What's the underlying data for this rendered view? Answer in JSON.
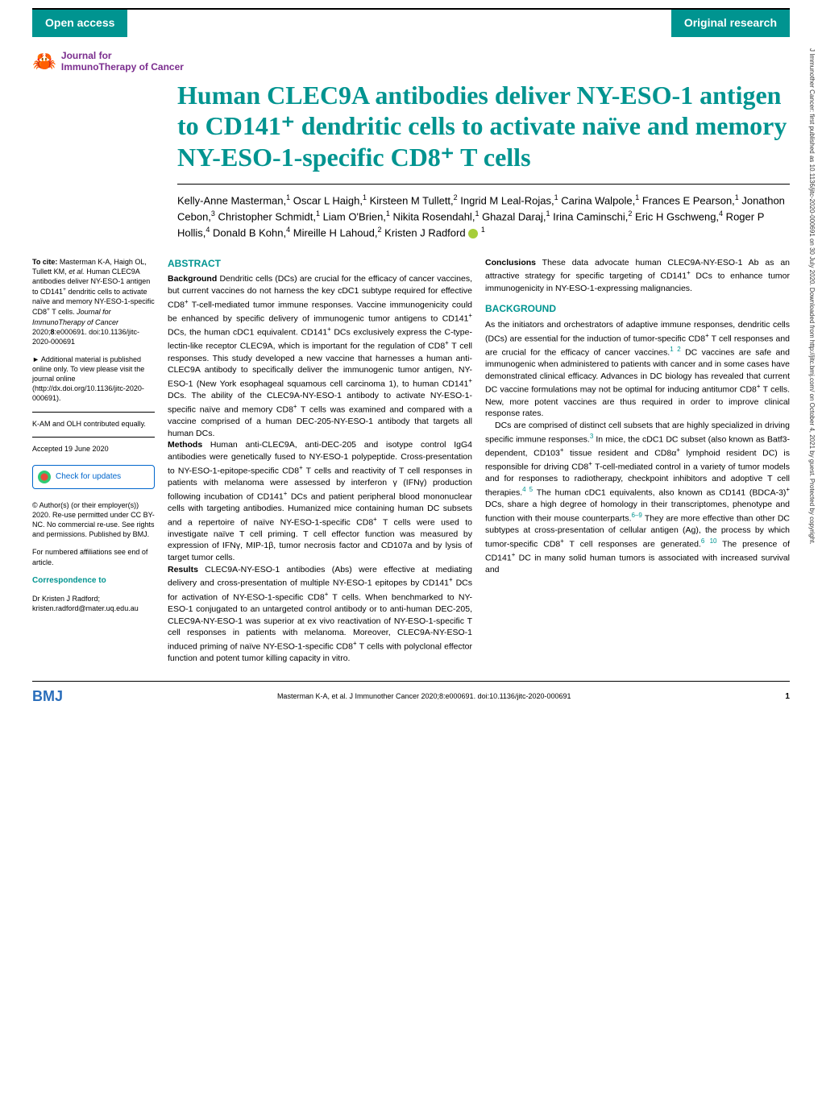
{
  "header": {
    "left": "Open access",
    "right": "Original research"
  },
  "journal": {
    "name_line1": "Journal for",
    "name_line2": "ImmunoTherapy of Cancer"
  },
  "title": "Human CLEC9A antibodies deliver NY-ESO-1 antigen to CD141⁺ dendritic cells to activate naïve and memory NY-ESO-1-specific CD8⁺ T cells",
  "authors_html": "Kelly-Anne Masterman,<sup>1</sup> Oscar L Haigh,<sup>1</sup> Kirsteen M Tullett,<sup>2</sup> Ingrid M Leal-Rojas,<sup>1</sup> Carina Walpole,<sup>1</sup> Frances E Pearson,<sup>1</sup> Jonathon Cebon,<sup>3</sup> Christopher Schmidt,<sup>1</sup> Liam O'Brien,<sup>1</sup> Nikita Rosendahl,<sup>1</sup> Ghazal Daraj,<sup>1</sup> Irina Caminschi,<sup>2</sup> Eric H Gschweng,<sup>4</sup> Roger P Hollis,<sup>4</sup> Donald B Kohn,<sup>4</sup> Mireille H Lahoud,<sup>2</sup> Kristen J Radford <span class=\"orcid-icon\"></span> <sup>1</sup>",
  "sidebar": {
    "cite": "<span class=\"bold\">To cite:</span> Masterman K-A, Haigh OL, Tullett KM, <span class=\"italic\">et al.</span> Human CLEC9A antibodies deliver NY-ESO-1 antigen to CD141<sup>+</sup> dendritic cells to activate naïve and memory NY-ESO-1-specific CD8<sup>+</sup> T cells. <span class=\"italic\">Journal for ImmunoTherapy of Cancer</span> 2020;<span class=\"bold\">8</span>:e000691. doi:10.1136/jitc-2020-000691",
    "additional": "► Additional material is published online only. To view please visit the journal online (http://dx.doi.org/10.1136/jitc-2020-000691).",
    "contrib": "K-AM and OLH contributed equally.",
    "accepted": "Accepted 19 June 2020",
    "check": "Check for updates",
    "license": "© Author(s) (or their employer(s)) 2020. Re-use permitted under CC BY-NC. No commercial re-use. See rights and permissions. Published by BMJ.",
    "affil": "For numbered affiliations see end of article.",
    "corr_h": "Correspondence to",
    "corr": "Dr Kristen J Radford; kristen.radford@mater.uq.edu.au"
  },
  "abstract": {
    "heading": "ABSTRACT",
    "background": "<span class=\"bg-label\">Background</span> Dendritic cells (DCs) are crucial for the efficacy of cancer vaccines, but current vaccines do not harness the key cDC1 subtype required for effective CD8<sup>+</sup> T-cell-mediated tumor immune responses. Vaccine immunogenicity could be enhanced by specific delivery of immunogenic tumor antigens to CD141<sup>+</sup> DCs, the human cDC1 equivalent. CD141<sup>+</sup> DCs exclusively express the C-type-lectin-like receptor CLEC9A, which is important for the regulation of CD8<sup>+</sup> T cell responses. This study developed a new vaccine that harnesses a human anti-CLEC9A antibody to specifically deliver the immunogenic tumor antigen, NY-ESO-1 (New York esophageal squamous cell carcinoma 1), to human CD141<sup>+</sup> DCs. The ability of the CLEC9A-NY-ESO-1 antibody to activate NY-ESO-1-specific naïve and memory CD8<sup>+</sup> T cells was examined and compared with a vaccine comprised of a human DEC-205-NY-ESO-1 antibody that targets all human DCs.",
    "methods": "<span class=\"bg-label\">Methods</span> Human anti-CLEC9A, anti-DEC-205 and isotype control IgG4 antibodies were genetically fused to NY-ESO-1 polypeptide. Cross-presentation to NY-ESO-1-epitope-specific CD8<sup>+</sup> T cells and reactivity of T cell responses in patients with melanoma were assessed by interferon γ (IFNγ) production following incubation of CD141<sup>+</sup> DCs and patient peripheral blood mononuclear cells with targeting antibodies. Humanized mice containing human DC subsets and a repertoire of naïve NY-ESO-1-specific CD8<sup>+</sup> T cells were used to investigate naïve T cell priming. T cell effector function was measured by expression of IFNγ, MIP-1β, tumor necrosis factor and CD107a and by lysis of target tumor cells.",
    "results": "<span class=\"bg-label\">Results</span> CLEC9A-NY-ESO-1 antibodies (Abs) were effective at mediating delivery and cross-presentation of multiple NY-ESO-1 epitopes by CD141<sup>+</sup> DCs for activation of NY-ESO-1-specific CD8<sup>+</sup> T cells. When benchmarked to NY-ESO-1 conjugated to an untargeted control antibody or to anti-human DEC-205, CLEC9A-NY-ESO-1 was superior at ex vivo reactivation of NY-ESO-1-specific T cell responses in patients with melanoma. Moreover, CLEC9A-NY-ESO-1 induced priming of naïve NY-ESO-1-specific CD8<sup>+</sup> T cells with polyclonal effector function and potent tumor killing capacity in vitro.",
    "conclusions": "<span class=\"bg-label\">Conclusions</span> These data advocate human CLEC9A-NY-ESO-1 Ab as an attractive strategy for specific targeting of CD141<sup>+</sup> DCs to enhance tumor immunogenicity in NY-ESO-1-expressing malignancies."
  },
  "background": {
    "heading": "BACKGROUND",
    "p1": "As the initiators and orchestrators of adaptive immune responses, dendritic cells (DCs) are essential for the induction of tumor-specific CD8<sup>+</sup> T cell responses and are crucial for the efficacy of cancer vaccines.<span class=\"ref\">1 2</span> DC vaccines are safe and immunogenic when administered to patients with cancer and in some cases have demonstrated clinical efficacy. Advances in DC biology has revealed that current DC vaccine formulations may not be optimal for inducing antitumor CD8<sup>+</sup> T cells. New, more potent vaccines are thus required in order to improve clinical response rates.",
    "p2": "DCs are comprised of distinct cell subsets that are highly specialized in driving specific immune responses.<span class=\"ref\">3</span> In mice, the cDC1 DC subset (also known as Batf3-dependent, CD103<sup>+</sup> tissue resident and CD8α<sup>+</sup> lymphoid resident DC) is responsible for driving CD8<sup>+</sup> T-cell-mediated control in a variety of tumor models and for responses to radiotherapy, checkpoint inhibitors and adoptive T cell therapies.<span class=\"ref\">4 5</span> The human cDC1 equivalents, also known as CD141 (BDCA-3)<sup>+</sup> DCs, share a high degree of homology in their transcriptomes, phenotype and function with their mouse counterparts.<span class=\"ref\">6–9</span> They are more effective than other DC subtypes at cross-presentation of cellular antigen (Ag), the process by which tumor-specific CD8<sup>+</sup> T cell responses are generated.<span class=\"ref\">6 10</span> The presence of CD141<sup>+</sup> DC in many solid human tumors is associated with increased survival and"
  },
  "footer": {
    "bmj": "BMJ",
    "citation": "Masterman K-A, et al. J Immunother Cancer 2020;8:e000691. doi:10.1136/jitc-2020-000691",
    "page": "1"
  },
  "sidenote": "J Immunother Cancer: first published as 10.1136/jitc-2020-000691 on 30 July 2020. Downloaded from http://jitc.bmj.com/ on October 4, 2021 by guest. Protected by copyright.",
  "colors": {
    "teal": "#009490",
    "purple": "#7b2d8e",
    "blue": "#2a6ebb",
    "link": "#0066cc"
  }
}
